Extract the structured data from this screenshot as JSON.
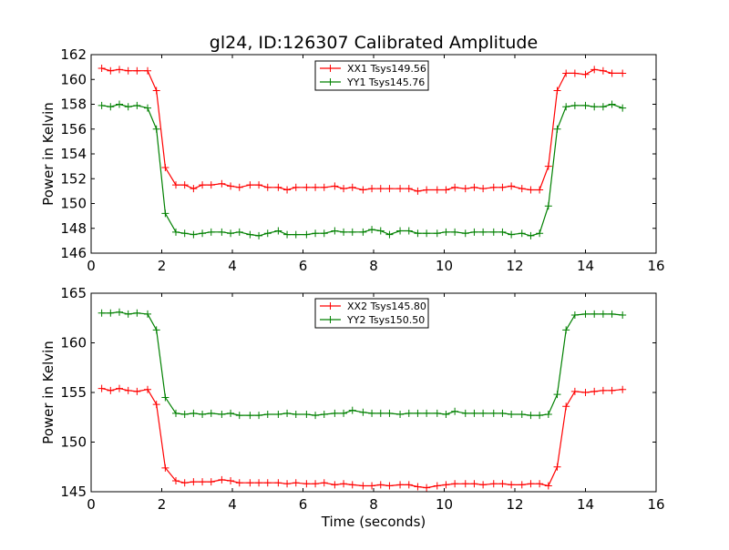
{
  "figure": {
    "title": "gl24, ID:126307 Calibrated Amplitude"
  },
  "chart_data": [
    {
      "type": "line",
      "title": "gl24, ID:126307 Calibrated Amplitude",
      "xlabel": "",
      "ylabel": "Power in Kelvin",
      "xlim": [
        0,
        16
      ],
      "ylim": [
        146,
        162
      ],
      "xticks": [
        "0",
        "2",
        "4",
        "6",
        "8",
        "10",
        "12",
        "14",
        "16"
      ],
      "yticks": [
        "146",
        "148",
        "150",
        "152",
        "154",
        "156",
        "158",
        "160",
        "162"
      ],
      "grid": false,
      "legend_position": "top-center",
      "x": [
        0.3,
        0.55,
        0.8,
        1.05,
        1.3,
        1.6,
        1.85,
        2.1,
        2.4,
        2.65,
        2.9,
        3.15,
        3.4,
        3.7,
        3.95,
        4.2,
        4.5,
        4.75,
        5.0,
        5.3,
        5.55,
        5.8,
        6.1,
        6.35,
        6.6,
        6.9,
        7.15,
        7.4,
        7.7,
        7.95,
        8.2,
        8.45,
        8.75,
        9.0,
        9.25,
        9.5,
        9.8,
        10.05,
        10.3,
        10.6,
        10.85,
        11.1,
        11.4,
        11.65,
        11.9,
        12.2,
        12.45,
        12.7,
        12.95,
        13.2,
        13.45,
        13.7,
        14.0,
        14.25,
        14.5,
        14.75,
        15.05
      ],
      "series": [
        {
          "name": "XX1 Tsys149.56",
          "color": "#ff0000",
          "values": [
            160.9,
            160.7,
            160.8,
            160.7,
            160.7,
            160.7,
            159.1,
            152.9,
            151.5,
            151.5,
            151.2,
            151.5,
            151.5,
            151.6,
            151.4,
            151.3,
            151.5,
            151.5,
            151.3,
            151.3,
            151.1,
            151.3,
            151.3,
            151.3,
            151.3,
            151.4,
            151.2,
            151.3,
            151.1,
            151.2,
            151.2,
            151.2,
            151.2,
            151.2,
            151.0,
            151.1,
            151.1,
            151.1,
            151.3,
            151.2,
            151.3,
            151.2,
            151.3,
            151.3,
            151.4,
            151.2,
            151.1,
            151.1,
            153.0,
            159.1,
            160.5,
            160.5,
            160.4,
            160.8,
            160.7,
            160.5,
            160.5
          ]
        },
        {
          "name": "YY1 Tsys145.76",
          "color": "#008000",
          "values": [
            157.9,
            157.8,
            158.0,
            157.8,
            157.9,
            157.7,
            156.0,
            149.2,
            147.7,
            147.6,
            147.5,
            147.6,
            147.7,
            147.7,
            147.6,
            147.7,
            147.5,
            147.4,
            147.6,
            147.8,
            147.5,
            147.5,
            147.5,
            147.6,
            147.6,
            147.8,
            147.7,
            147.7,
            147.7,
            147.9,
            147.8,
            147.5,
            147.8,
            147.8,
            147.6,
            147.6,
            147.6,
            147.7,
            147.7,
            147.6,
            147.7,
            147.7,
            147.7,
            147.7,
            147.5,
            147.6,
            147.4,
            147.6,
            149.8,
            156.0,
            157.8,
            157.9,
            157.9,
            157.8,
            157.8,
            158.0,
            157.7
          ]
        }
      ]
    },
    {
      "type": "line",
      "title": "",
      "xlabel": "Time (seconds)",
      "ylabel": "Power in Kelvin",
      "xlim": [
        0,
        16
      ],
      "ylim": [
        145,
        165
      ],
      "xticks": [
        "0",
        "2",
        "4",
        "6",
        "8",
        "10",
        "12",
        "14",
        "16"
      ],
      "yticks": [
        "145",
        "150",
        "155",
        "160",
        "165"
      ],
      "grid": false,
      "legend_position": "top-center",
      "x": [
        0.3,
        0.55,
        0.8,
        1.05,
        1.3,
        1.6,
        1.85,
        2.1,
        2.4,
        2.65,
        2.9,
        3.15,
        3.4,
        3.7,
        3.95,
        4.2,
        4.5,
        4.75,
        5.0,
        5.3,
        5.55,
        5.8,
        6.1,
        6.35,
        6.6,
        6.9,
        7.15,
        7.4,
        7.7,
        7.95,
        8.2,
        8.45,
        8.75,
        9.0,
        9.25,
        9.5,
        9.8,
        10.05,
        10.3,
        10.6,
        10.85,
        11.1,
        11.4,
        11.65,
        11.9,
        12.2,
        12.45,
        12.7,
        12.95,
        13.2,
        13.45,
        13.7,
        14.0,
        14.25,
        14.5,
        14.75,
        15.05
      ],
      "series": [
        {
          "name": "XX2 Tsys145.80",
          "color": "#ff0000",
          "values": [
            155.4,
            155.2,
            155.4,
            155.2,
            155.1,
            155.3,
            153.8,
            147.4,
            146.1,
            145.9,
            146.0,
            146.0,
            146.0,
            146.2,
            146.1,
            145.9,
            145.9,
            145.9,
            145.9,
            145.9,
            145.8,
            145.9,
            145.8,
            145.8,
            145.9,
            145.7,
            145.8,
            145.7,
            145.6,
            145.6,
            145.7,
            145.6,
            145.7,
            145.7,
            145.5,
            145.4,
            145.6,
            145.7,
            145.8,
            145.8,
            145.8,
            145.7,
            145.8,
            145.8,
            145.7,
            145.7,
            145.8,
            145.8,
            145.6,
            147.5,
            153.6,
            155.1,
            155.0,
            155.1,
            155.2,
            155.2,
            155.3
          ]
        },
        {
          "name": "YY2 Tsys150.50",
          "color": "#008000",
          "values": [
            163.0,
            163.0,
            163.1,
            162.9,
            163.0,
            162.9,
            161.3,
            154.5,
            152.9,
            152.8,
            152.9,
            152.8,
            152.9,
            152.8,
            152.9,
            152.7,
            152.7,
            152.7,
            152.8,
            152.8,
            152.9,
            152.8,
            152.8,
            152.7,
            152.8,
            152.9,
            152.9,
            153.2,
            153.0,
            152.9,
            152.9,
            152.9,
            152.8,
            152.9,
            152.9,
            152.9,
            152.9,
            152.8,
            153.1,
            152.9,
            152.9,
            152.9,
            152.9,
            152.9,
            152.8,
            152.8,
            152.7,
            152.7,
            152.8,
            154.8,
            161.3,
            162.8,
            162.9,
            162.9,
            162.9,
            162.9,
            162.8
          ]
        }
      ]
    }
  ]
}
